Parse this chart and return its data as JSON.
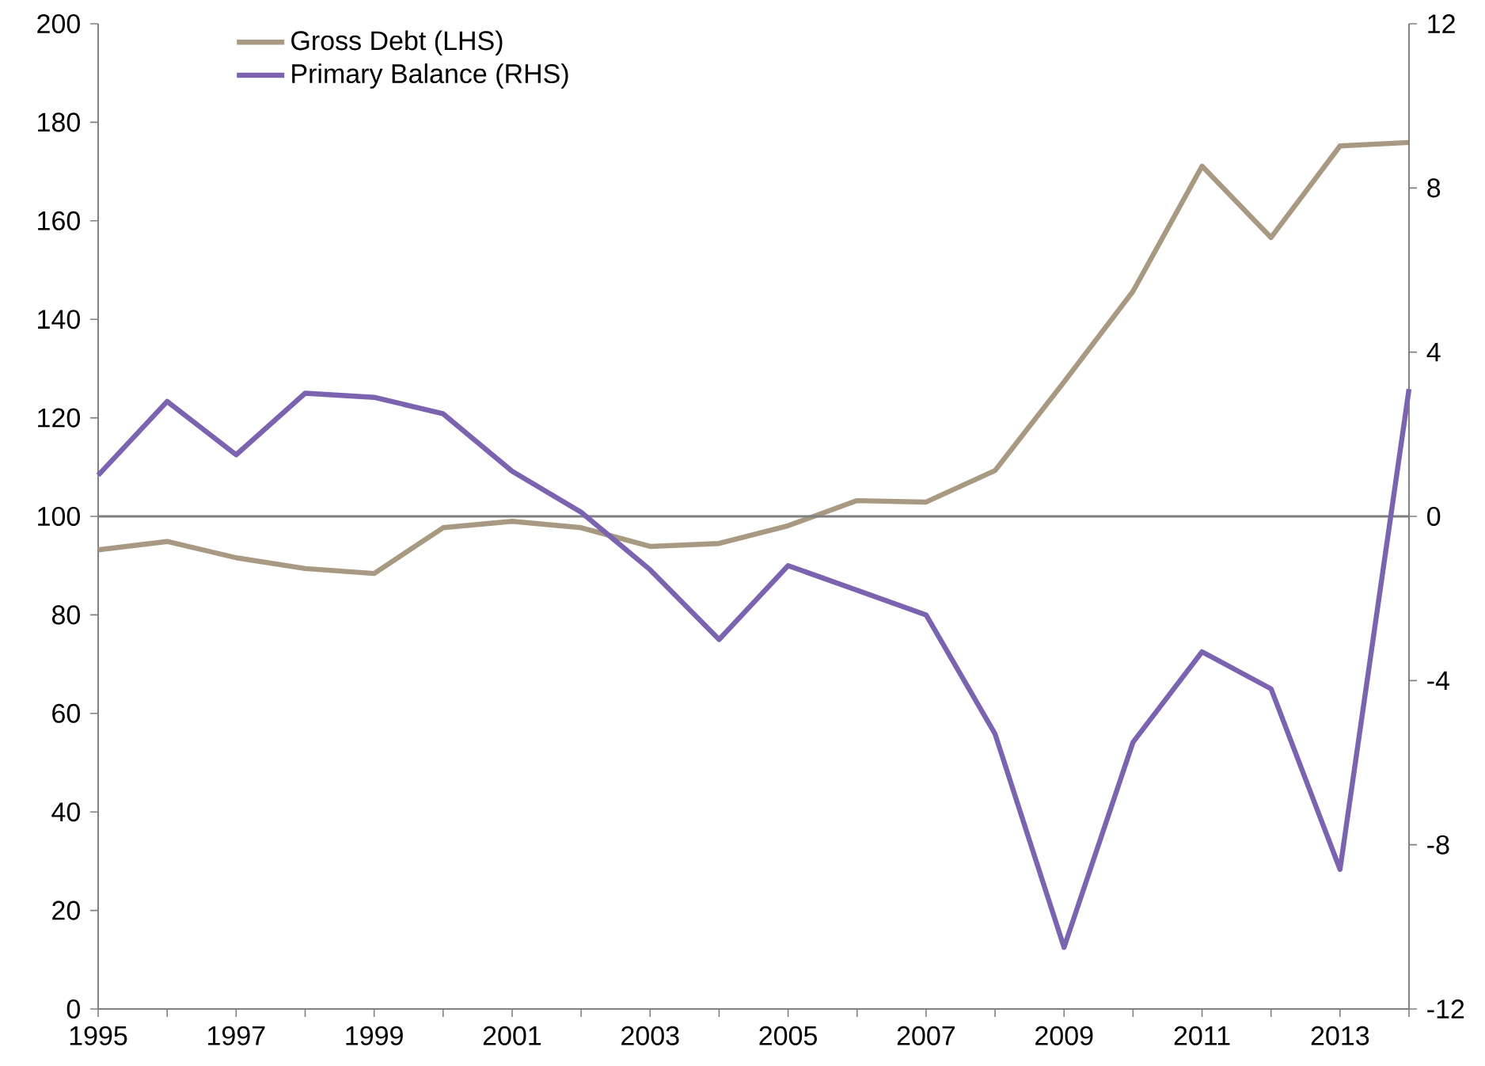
{
  "chart_data": {
    "type": "line",
    "x": [
      1995,
      1996,
      1997,
      1998,
      1999,
      2000,
      2001,
      2002,
      2003,
      2004,
      2005,
      2006,
      2007,
      2008,
      2009,
      2010,
      2011,
      2012,
      2013,
      2014
    ],
    "series": [
      {
        "name": "Gross Debt (LHS)",
        "color": "#a89a82",
        "values": [
          93.2,
          94.9,
          91.6,
          89.4,
          88.4,
          97.7,
          99.0,
          97.7,
          93.9,
          94.5,
          98.1,
          103.2,
          102.9,
          109.3,
          127.3,
          145.7,
          171.1,
          156.6,
          175.2,
          175.9
        ]
      },
      {
        "name": "Primary Balance (RHS)",
        "color": "#7b63b0",
        "axis": "y2",
        "values": [
          1.0,
          2.8,
          1.5,
          3.0,
          2.9,
          2.5,
          1.1,
          0.1,
          -1.3,
          -3.0,
          -1.2,
          -1.8,
          -2.4,
          -5.3,
          -10.5,
          -5.5,
          -3.3,
          -4.2,
          -8.6,
          3.1
        ]
      }
    ],
    "xlim": [
      1995,
      2014
    ],
    "xticks": [
      1995,
      {
        "value": 1996,
        "label": null
      },
      1997,
      {
        "value": 1998,
        "label": null
      },
      1999,
      {
        "value": 2000,
        "label": null
      },
      2001,
      {
        "value": 2002,
        "label": null
      },
      2003,
      {
        "value": 2004,
        "label": null
      },
      2005,
      {
        "value": 2006,
        "label": null
      },
      2007,
      {
        "value": 2008,
        "label": null
      },
      2009,
      {
        "value": 2010,
        "label": null
      },
      2011,
      {
        "value": 2012,
        "label": null
      },
      2013,
      {
        "value": 2014,
        "label": null
      }
    ],
    "ylim": [
      0,
      200
    ],
    "yticks": [
      0,
      20,
      40,
      60,
      80,
      100,
      120,
      140,
      160,
      180,
      200
    ],
    "y2lim": [
      -12,
      12
    ],
    "y2ticks": [
      -12,
      -8,
      -4,
      0,
      4,
      8,
      12
    ],
    "ref_lines": [
      {
        "axis": "y2",
        "value": 0,
        "color": "#7f7f7f"
      }
    ],
    "legend": "top left",
    "marker": "none",
    "line_style": "solid",
    "grid": false
  }
}
